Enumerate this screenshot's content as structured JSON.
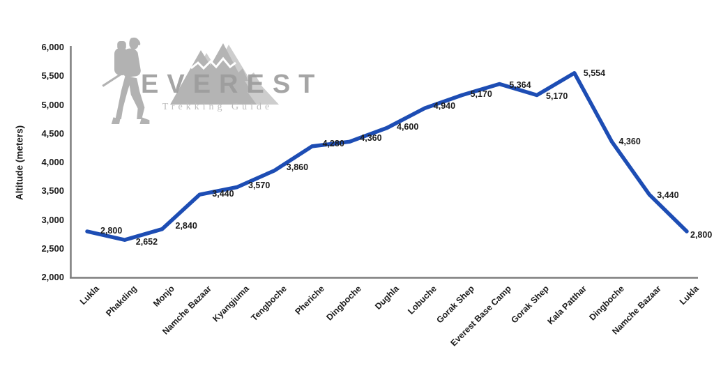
{
  "logo": {
    "title": "EVEREST",
    "subtitle": "Trekking Guide",
    "icons": [
      "trekker-icon",
      "mountains-icon"
    ]
  },
  "chart_data": {
    "type": "line",
    "title": "",
    "xlabel": "",
    "ylabel": "Altitude (meters)",
    "ylim": [
      2000,
      6000
    ],
    "ytick_step": 500,
    "ytick_labels": [
      "2,000",
      "2,500",
      "3,000",
      "3,500",
      "4,000",
      "4,500",
      "5,000",
      "5,500",
      "6,000"
    ],
    "grid": false,
    "legend": "none",
    "line_color": "#1d4db4",
    "axis_color": "#7d7d7d",
    "label_color": "#1c1c1c",
    "categories": [
      "Lukla",
      "Phakding",
      "Monjo",
      "Namche Bazaar",
      "Kyangjuma",
      "Tengboche",
      "Pheriche",
      "Dingboche",
      "Dughla",
      "Lobuche",
      "Gorak Shep",
      "Everest Base Camp",
      "Gorak Shep",
      "Kala Patthar",
      "Dingboche",
      "Namche Bazaar",
      "Lukla"
    ],
    "values": [
      2800,
      2652,
      2840,
      3440,
      3570,
      3860,
      4280,
      4360,
      4600,
      4940,
      5170,
      5364,
      5170,
      5554,
      4360,
      3440,
      2800
    ],
    "point_labels": [
      "2,800",
      "2,652",
      "2,840",
      "3,440",
      "3,570",
      "3,860",
      "4,280",
      "4,360",
      "4,600",
      "4,940",
      "5,170",
      "5,364",
      "5,170",
      "5,554",
      "4,360",
      "3,440",
      "2,800"
    ]
  }
}
